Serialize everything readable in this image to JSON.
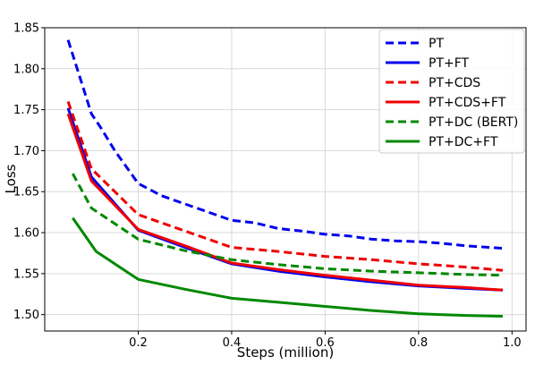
{
  "chart_data": {
    "type": "line",
    "title": "",
    "xlabel": "Steps (million)",
    "ylabel": "Loss",
    "xlim": [
      0.0,
      1.03
    ],
    "ylim": [
      1.48,
      1.85
    ],
    "x_ticks": [
      0.2,
      0.4,
      0.6,
      0.8,
      1.0
    ],
    "x_tick_labels": [
      "0.2",
      "0.4",
      "0.6",
      "0.8",
      "1.0"
    ],
    "y_ticks": [
      1.5,
      1.55,
      1.6,
      1.65,
      1.7,
      1.75,
      1.8,
      1.85
    ],
    "y_tick_labels": [
      "1.50",
      "1.55",
      "1.60",
      "1.65",
      "1.70",
      "1.75",
      "1.80",
      "1.85"
    ],
    "grid": true,
    "legend_position": "top-right",
    "series": [
      {
        "name": "PT",
        "color": "#0000ee",
        "dash": "dashed",
        "x": [
          0.05,
          0.1,
          0.12,
          0.15,
          0.2,
          0.25,
          0.3,
          0.35,
          0.4,
          0.45,
          0.5,
          0.55,
          0.6,
          0.65,
          0.7,
          0.75,
          0.8,
          0.85,
          0.9,
          0.95,
          0.98
        ],
        "y": [
          1.835,
          1.745,
          1.728,
          1.7,
          1.66,
          1.645,
          1.635,
          1.625,
          1.615,
          1.612,
          1.605,
          1.602,
          1.598,
          1.596,
          1.592,
          1.59,
          1.589,
          1.587,
          1.584,
          1.582,
          1.581
        ]
      },
      {
        "name": "PT+FT",
        "color": "#0000ee",
        "dash": "solid",
        "x": [
          0.05,
          0.1,
          0.2,
          0.3,
          0.4,
          0.5,
          0.6,
          0.7,
          0.8,
          0.9,
          0.98
        ],
        "y": [
          1.752,
          1.668,
          1.603,
          1.582,
          1.562,
          1.553,
          1.546,
          1.54,
          1.535,
          1.532,
          1.53
        ]
      },
      {
        "name": "PT+CDS",
        "color": "#ee0000",
        "dash": "dashed",
        "x": [
          0.05,
          0.1,
          0.2,
          0.3,
          0.4,
          0.5,
          0.6,
          0.7,
          0.8,
          0.9,
          0.98
        ],
        "y": [
          1.76,
          1.678,
          1.622,
          1.602,
          1.582,
          1.577,
          1.571,
          1.567,
          1.562,
          1.558,
          1.554
        ]
      },
      {
        "name": "PT+CDS+FT",
        "color": "#ee0000",
        "dash": "solid",
        "x": [
          0.05,
          0.1,
          0.2,
          0.3,
          0.4,
          0.5,
          0.6,
          0.7,
          0.8,
          0.9,
          0.98
        ],
        "y": [
          1.745,
          1.663,
          1.604,
          1.584,
          1.563,
          1.555,
          1.548,
          1.542,
          1.536,
          1.533,
          1.53
        ]
      },
      {
        "name": "PT+DC (BERT)",
        "color": "#008800",
        "dash": "dashed",
        "x": [
          0.06,
          0.1,
          0.2,
          0.3,
          0.4,
          0.5,
          0.6,
          0.7,
          0.8,
          0.9,
          0.98
        ],
        "y": [
          1.672,
          1.63,
          1.592,
          1.578,
          1.567,
          1.561,
          1.556,
          1.553,
          1.551,
          1.549,
          1.548
        ]
      },
      {
        "name": "PT+DC+FT",
        "color": "#008800",
        "dash": "solid",
        "x": [
          0.06,
          0.11,
          0.2,
          0.3,
          0.4,
          0.5,
          0.6,
          0.7,
          0.8,
          0.9,
          0.98
        ],
        "y": [
          1.618,
          1.577,
          1.543,
          1.531,
          1.52,
          1.515,
          1.51,
          1.505,
          1.501,
          1.499,
          1.498
        ]
      }
    ]
  }
}
